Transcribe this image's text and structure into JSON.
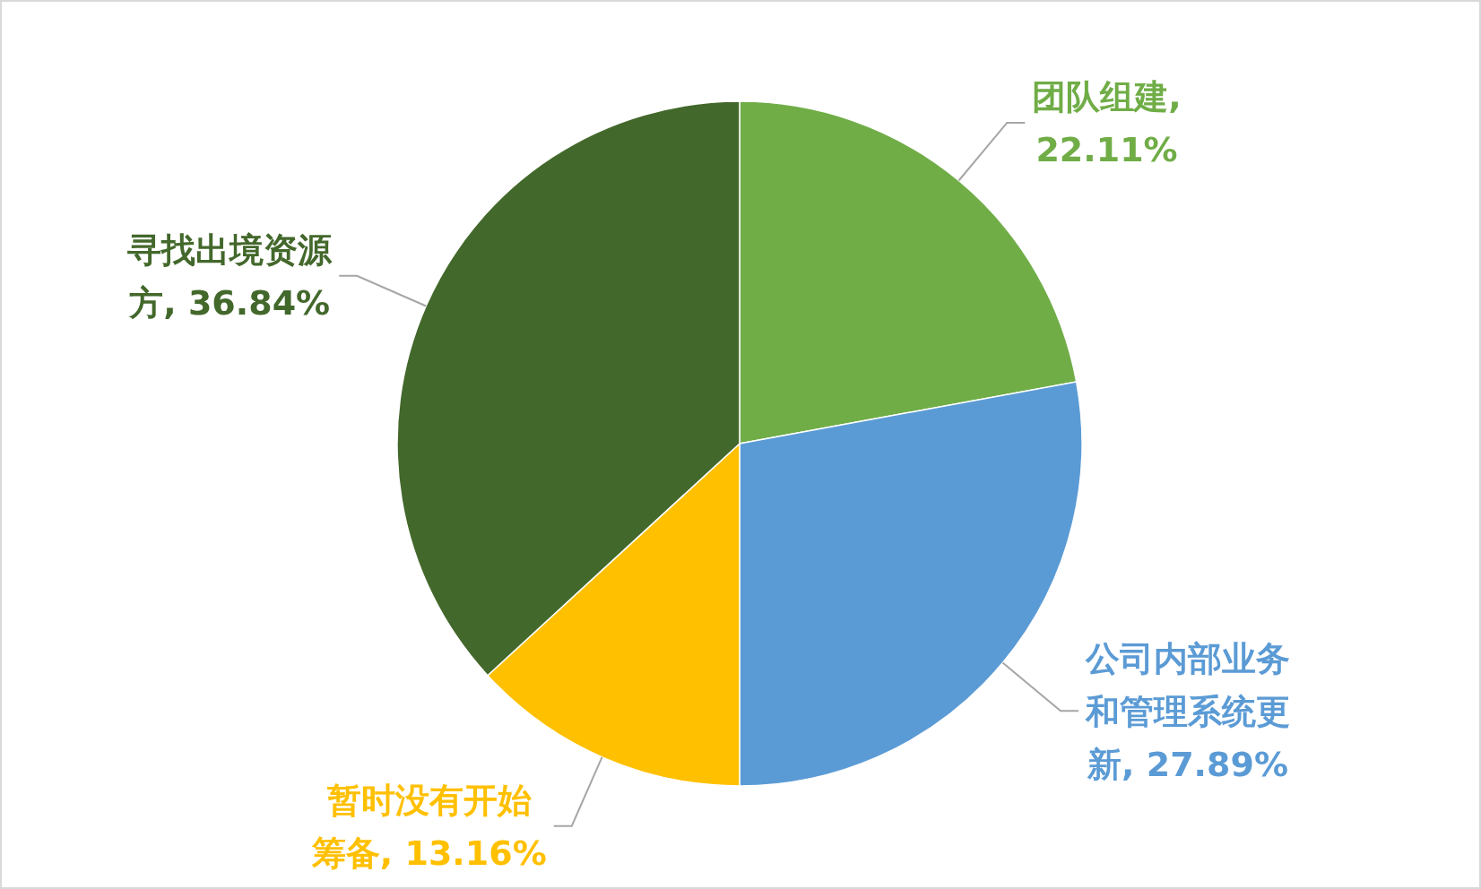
{
  "chart_data": {
    "type": "pie",
    "categories": [
      "团队组建",
      "公司内部业务和管理系统更新",
      "暂时没有开始筹备",
      "寻找出境资源方"
    ],
    "values": [
      22.11,
      27.89,
      13.16,
      36.84
    ],
    "value_labels": [
      ", 22.11%",
      ", 27.89%",
      ", 13.16%",
      ", 36.84%"
    ],
    "colors": [
      "#70ad47",
      "#5b9bd5",
      "#ffc000",
      "#43682b"
    ],
    "legend": false
  }
}
